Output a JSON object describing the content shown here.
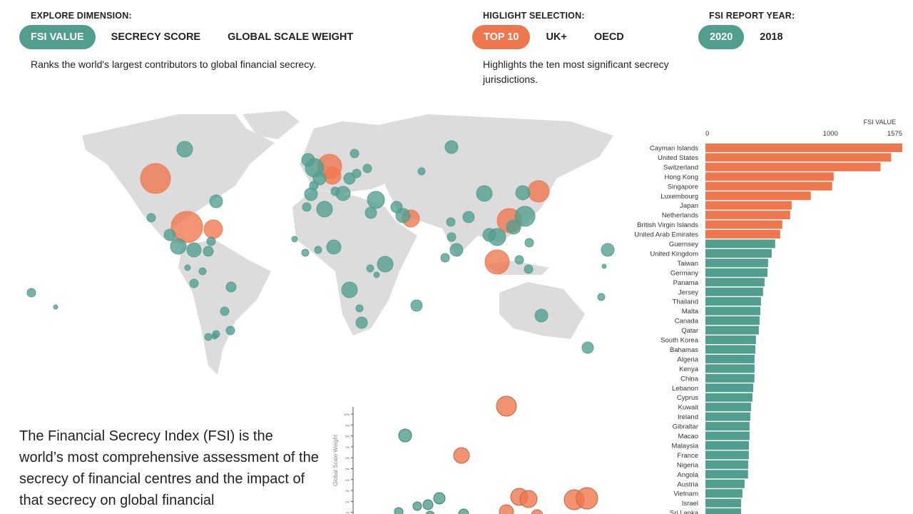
{
  "controls": {
    "dimension": {
      "label": "EXPLORE DIMENSION:",
      "options": [
        "FSI VALUE",
        "SECRECY SCORE",
        "GLOBAL SCALE WEIGHT"
      ],
      "selected": "FSI VALUE",
      "description": "Ranks the world's largest contributors to global financial secrecy."
    },
    "highlight": {
      "label": "HIGLIGHT SELECTION:",
      "options": [
        "TOP 10",
        "UK+",
        "OECD"
      ],
      "selected": "TOP 10",
      "description": "Highlights the ten most significant secrecy jurisdictions."
    },
    "year": {
      "label": "FSI REPORT YEAR:",
      "options": [
        "2020",
        "2018"
      ],
      "selected": "2020"
    }
  },
  "colors": {
    "highlight": "#ef774d",
    "base": "#519d8e",
    "land": "#dcdcdc"
  },
  "intro_text": "The Financial Secrecy Index (FSI) is the world’s most comprehensive assessment of the secrecy of financial centres and the impact of that secrecy on global financial",
  "chart_data": [
    {
      "type": "bar",
      "title": "FSI VALUE",
      "xlim": [
        0,
        1575
      ],
      "ticks": [
        "0",
        "1000",
        "1575"
      ],
      "highlight_count": 10,
      "categories": [
        "Cayman Islands",
        "United States",
        "Switzerland",
        "Hong Kong",
        "Singapore",
        "Luxembourg",
        "Japan",
        "Netherlands",
        "British Virgin Islands",
        "United Arab Emirates",
        "Guernsey",
        "United Kingdom",
        "Taiwan",
        "Germany",
        "Panama",
        "Jersey",
        "Thailand",
        "Malta",
        "Canada",
        "Qatar",
        "South Korea",
        "Bahamas",
        "Algeria",
        "Kenya",
        "China",
        "Lebanon",
        "Cyprus",
        "Kuwait",
        "Ireland",
        "Gibraltar",
        "Macao",
        "Malaysia",
        "France",
        "Nigeria",
        "Angola",
        "Austria",
        "Vietnam",
        "Israel",
        "Sri Lanka"
      ],
      "values": [
        1575,
        1486,
        1401,
        1026,
        1014,
        843,
        690,
        678,
        615,
        598,
        558,
        530,
        501,
        496,
        473,
        461,
        444,
        439,
        433,
        427,
        404,
        399,
        393,
        393,
        392,
        382,
        376,
        365,
        359,
        353,
        353,
        348,
        347,
        342,
        341,
        313,
        296,
        285,
        285
      ]
    },
    {
      "type": "scatter",
      "ylabel": "Global Scale Weight",
      "yticks": [
        "10%",
        "9%",
        "8%",
        "7%",
        "6%",
        "5%",
        "4%",
        "3%",
        "2%",
        "1%"
      ]
    }
  ]
}
